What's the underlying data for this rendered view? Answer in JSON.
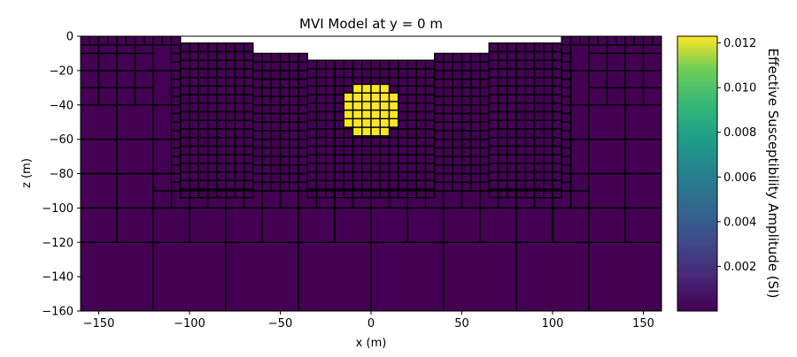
{
  "chart_data": {
    "type": "heatmap",
    "title": "MVI Model at y = 0 m",
    "xlabel": "x (m)",
    "ylabel": "z (m)",
    "xlim": [
      -160,
      160
    ],
    "ylim": [
      -160,
      0
    ],
    "xticks": [
      -150,
      -100,
      -50,
      0,
      50,
      100,
      150
    ],
    "yticks": [
      0,
      -20,
      -40,
      -60,
      -80,
      -100,
      -120,
      -140,
      -160
    ],
    "colorbar": {
      "label": "Effective Susceptibility Amplitude (SI)",
      "min": 0.0,
      "max": 0.0123,
      "ticks": [
        0.002,
        0.004,
        0.006,
        0.008,
        0.01,
        0.012
      ],
      "colormap": "viridis"
    },
    "background_value": 0.0,
    "anomaly": {
      "shape": "sphere",
      "center_x": 0,
      "center_z": -43,
      "radius": 15,
      "value": 0.0123
    },
    "mesh": {
      "topography_steps": [
        {
          "x_from": -160,
          "x_to": -105,
          "top": 0
        },
        {
          "x_from": -105,
          "x_to": -65,
          "top": -4
        },
        {
          "x_from": -65,
          "x_to": -35,
          "top": -10
        },
        {
          "x_from": -35,
          "x_to": 35,
          "top": -14
        },
        {
          "x_from": 35,
          "x_to": 65,
          "top": -10
        },
        {
          "x_from": 65,
          "x_to": 105,
          "top": -4
        },
        {
          "x_from": 105,
          "x_to": 160,
          "top": 0
        }
      ],
      "core_cell_size": 5,
      "core_x": [
        -110,
        110
      ],
      "core_z_bottom": -90
    }
  },
  "colors": {
    "frame": "#000000",
    "mesh_lines": "#000000",
    "background": "#ffffff"
  }
}
